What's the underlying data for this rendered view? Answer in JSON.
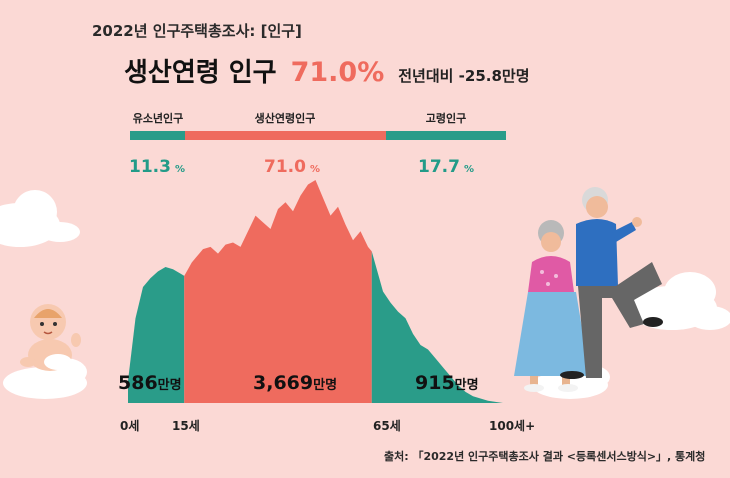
{
  "header": {
    "survey_title": "2022년 인구주택총조사: [인구]",
    "headline_label": "생산연령 인구",
    "headline_percent": "71.0%",
    "headline_change": "전년대비 -25.8만명"
  },
  "groups": [
    {
      "label": "유소년인구",
      "percent": "11.3",
      "unit": "%",
      "count": "586",
      "count_unit": "만명",
      "color": "#2a9c89"
    },
    {
      "label": "생산연령인구",
      "percent": "71.0",
      "unit": "%",
      "count": "3,669",
      "count_unit": "만명",
      "color": "#ef6b5e"
    },
    {
      "label": "고령인구",
      "percent": "17.7",
      "unit": "%",
      "count": "915",
      "count_unit": "만명",
      "color": "#2a9c89"
    }
  ],
  "chart_data": {
    "type": "area",
    "x_ticks": [
      "0세",
      "15세",
      "65세",
      "100세+"
    ],
    "x_domain": [
      0,
      100
    ],
    "boundaries": [
      15,
      65
    ],
    "x": [
      0,
      2,
      4,
      6,
      8,
      10,
      12,
      14,
      15,
      16,
      17,
      18,
      20,
      22,
      24,
      26,
      28,
      30,
      32,
      34,
      36,
      38,
      40,
      42,
      44,
      46,
      48,
      50,
      52,
      54,
      56,
      58,
      60,
      62,
      64,
      65,
      66,
      68,
      70,
      72,
      74,
      76,
      78,
      80,
      82,
      84,
      86,
      88,
      90,
      92,
      94,
      96,
      98,
      100
    ],
    "values": [
      0.1,
      0.38,
      0.52,
      0.56,
      0.59,
      0.61,
      0.6,
      0.58,
      0.57,
      0.6,
      0.63,
      0.65,
      0.69,
      0.7,
      0.67,
      0.71,
      0.72,
      0.7,
      0.77,
      0.84,
      0.81,
      0.78,
      0.87,
      0.9,
      0.86,
      0.93,
      0.98,
      1.0,
      0.92,
      0.84,
      0.88,
      0.8,
      0.73,
      0.77,
      0.7,
      0.68,
      0.62,
      0.5,
      0.45,
      0.41,
      0.38,
      0.31,
      0.26,
      0.24,
      0.2,
      0.16,
      0.12,
      0.08,
      0.05,
      0.03,
      0.02,
      0.01,
      0.005,
      0.0
    ],
    "colors": {
      "youth": "#2a9c89",
      "working": "#ef6b5e",
      "elderly": "#2a9c89"
    }
  },
  "source_note": "출처: 「2022년 인구주택총조사 결과 <등록센서스방식>」, 통계청"
}
